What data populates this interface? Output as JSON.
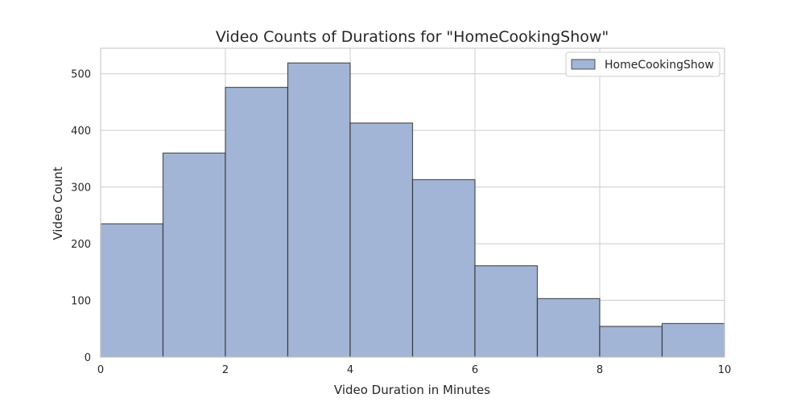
{
  "chart_data": {
    "type": "bar",
    "title": "Video Counts of Durations for \"HomeCookingShow\"",
    "xlabel": "Video Duration in Minutes",
    "ylabel": "Video Count",
    "xlim": [
      0,
      10
    ],
    "ylim": [
      0,
      545
    ],
    "x_ticks": [
      0,
      2,
      4,
      6,
      8,
      10
    ],
    "y_ticks": [
      0,
      100,
      200,
      300,
      400,
      500
    ],
    "grid": true,
    "legend_position": "top-right",
    "bar_color": "#a3b5d6",
    "bins": [
      {
        "start": 0,
        "end": 1,
        "value": 235
      },
      {
        "start": 1,
        "end": 2,
        "value": 360
      },
      {
        "start": 2,
        "end": 3,
        "value": 476
      },
      {
        "start": 3,
        "end": 4,
        "value": 519
      },
      {
        "start": 4,
        "end": 5,
        "value": 413
      },
      {
        "start": 5,
        "end": 6,
        "value": 313
      },
      {
        "start": 6,
        "end": 7,
        "value": 161
      },
      {
        "start": 7,
        "end": 8,
        "value": 103
      },
      {
        "start": 8,
        "end": 9,
        "value": 54
      },
      {
        "start": 9,
        "end": 10,
        "value": 59
      }
    ],
    "series": [
      {
        "name": "HomeCookingShow"
      }
    ]
  }
}
